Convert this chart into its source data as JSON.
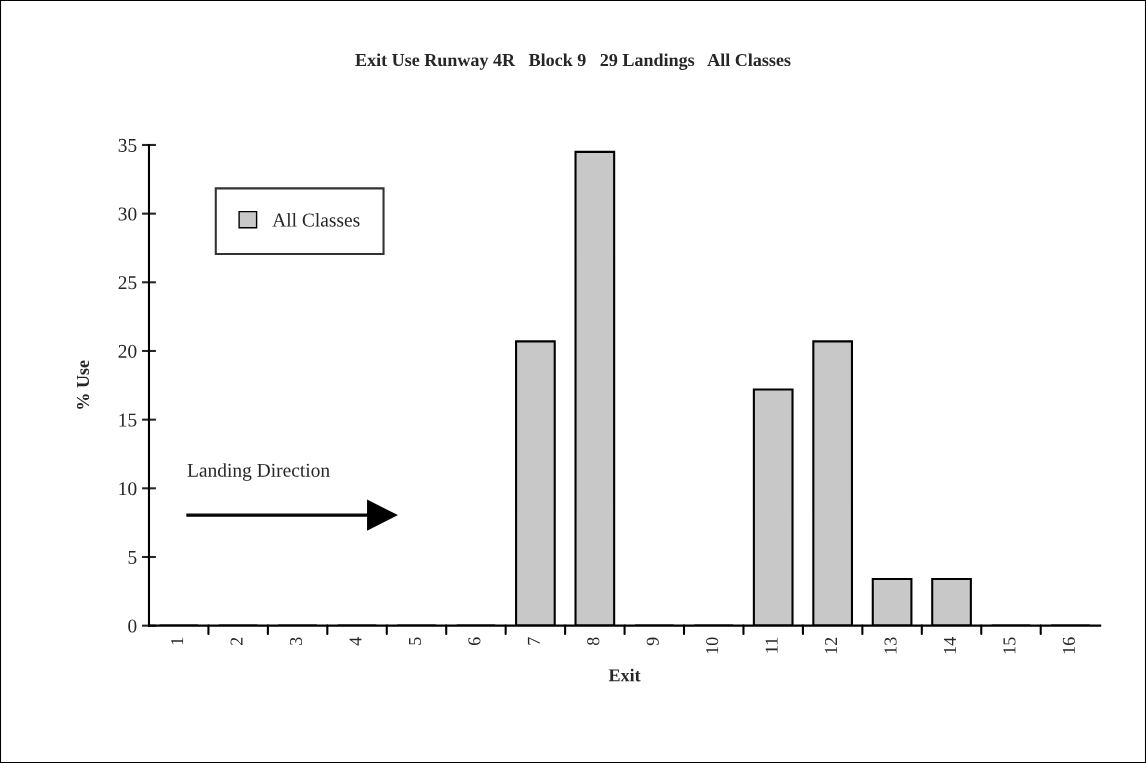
{
  "chart_data": {
    "type": "bar",
    "title": "Exit Use Runway 4R   Block 9   29 Landings   All Classes",
    "xlabel": "Exit",
    "ylabel": "% Use",
    "categories": [
      "1",
      "2",
      "3",
      "4",
      "5",
      "6",
      "7",
      "8",
      "9",
      "10",
      "11",
      "12",
      "13",
      "14",
      "15",
      "16"
    ],
    "series": [
      {
        "name": "All Classes",
        "color": "#c8c8c8",
        "values": [
          0,
          0,
          0,
          0,
          0,
          0,
          20.7,
          34.5,
          0,
          0,
          17.2,
          20.7,
          3.4,
          3.4,
          0,
          0
        ]
      }
    ],
    "ylim": [
      0,
      35
    ],
    "yticks": [
      0,
      5,
      10,
      15,
      20,
      25,
      30,
      35
    ],
    "grid": false,
    "legend": "top left",
    "annotations": [
      "Landing Direction"
    ]
  }
}
